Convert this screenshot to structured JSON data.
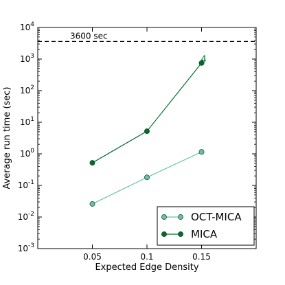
{
  "chart_data": {
    "type": "line",
    "xlabel": "Expected Edge Density",
    "ylabel": "Average run time (sec)",
    "x": [
      0.05,
      0.1,
      0.15
    ],
    "x_tick_labels": [
      "0.05",
      "0.1",
      "0.15"
    ],
    "xlim": [
      0.0,
      0.2
    ],
    "y_scale": "log",
    "ylim": [
      0.001,
      10000
    ],
    "y_ticks": [
      {
        "value": 10000,
        "base": "10",
        "exp": "4"
      },
      {
        "value": 1000,
        "base": "10",
        "exp": "3"
      },
      {
        "value": 100,
        "base": "10",
        "exp": "2"
      },
      {
        "value": 10,
        "base": "10",
        "exp": "1"
      },
      {
        "value": 1,
        "base": "10",
        "exp": "0"
      },
      {
        "value": 0.1,
        "base": "10",
        "exp": "-1"
      },
      {
        "value": 0.01,
        "base": "10",
        "exp": "-2"
      },
      {
        "value": 0.001,
        "base": "10",
        "exp": "-3"
      }
    ],
    "series": [
      {
        "name": "OCT-MICA",
        "color": "#66c2a4",
        "values": [
          0.026,
          0.18,
          1.15
        ]
      },
      {
        "name": "MICA",
        "color": "#006d2c",
        "values": [
          0.52,
          5.2,
          750
        ]
      }
    ],
    "reference_line": {
      "value": 3600,
      "label": "3600 sec"
    },
    "annotations": [
      {
        "text": "4",
        "x": 0.15,
        "series": "MICA"
      }
    ],
    "legend_position": "lower-right",
    "grid": false
  }
}
